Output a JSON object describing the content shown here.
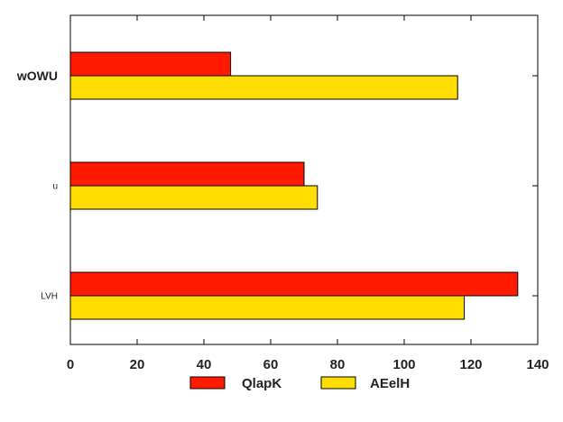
{
  "chart_data": {
    "type": "bar",
    "orientation": "horizontal",
    "categories": [
      "wOWU",
      "u",
      "LVH"
    ],
    "series": [
      {
        "name": "QlapK",
        "color": "#ff1a00",
        "values": [
          48,
          70,
          134
        ]
      },
      {
        "name": "AEelH",
        "color": "#ffdd00",
        "values": [
          116,
          74,
          118
        ]
      }
    ],
    "xlim": [
      0,
      140
    ],
    "xticks": [
      0,
      20,
      40,
      60,
      80,
      100,
      120,
      140
    ],
    "grid": false,
    "legend": "bottom-center"
  }
}
